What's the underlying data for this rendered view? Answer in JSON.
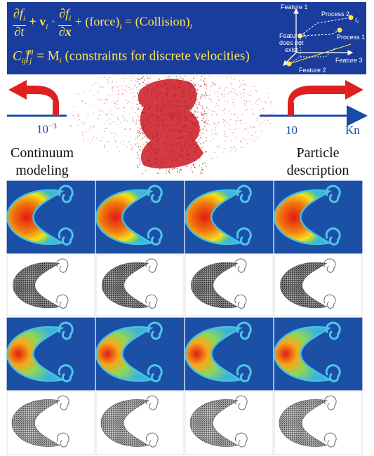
{
  "equation": {
    "line1_partial_num": "∂f",
    "line1_sub_i": "i",
    "line1_partial_den": "∂t",
    "line1_plus_v": "+ v",
    "line1_dot": "·",
    "line1_partial2_num": "∂f",
    "line1_partial2_den": "∂x",
    "line1_force": "+ (force)",
    "line1_equals": "= (Collision)",
    "line2_C": "C",
    "line2_ij": "ij",
    "line2_f": "f",
    "line2_j": "j",
    "line2_eq": "eq",
    "line2_rest": "= M",
    "line2_constraints": "(constraints for discrete velocities)"
  },
  "feature_diagram": {
    "feature1": "Feature 1",
    "feature2": "Feature 2",
    "feature3": "Feature 3",
    "process1": "Process 1",
    "process2": "Process 2",
    "t1": "t",
    "t1_sub": "1",
    "t2": "t",
    "t2_sub": "2",
    "not_exist_1": "Feature",
    "not_exist_2": "does not",
    "not_exist_3": "exist"
  },
  "scale": {
    "left_tick_base": "10",
    "left_tick_exp": "−3",
    "right_tick": "10",
    "axis_label": "Kn",
    "left_label_1": "Continuum",
    "left_label_2": "modeling",
    "right_label_1": "Particle",
    "right_label_2": "description"
  },
  "colors": {
    "banner": "#1a3c9c",
    "equation_text": "#ffe74d",
    "axis": "#1a4aa8",
    "arrow_red": "#e02020",
    "scatter_red": "#c8101a",
    "contour_bg": "#1c4fa6"
  }
}
